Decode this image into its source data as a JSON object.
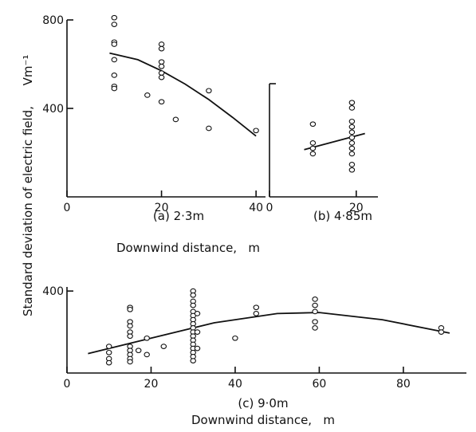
{
  "figure": {
    "ylabel_main": "Standard deviation of electric field,",
    "ylabel_unit": "Vm⁻¹"
  },
  "chart_data": [
    {
      "type": "scatter",
      "caption": "(a) 2·3m",
      "xlabel": "Downwind distance,   m",
      "ylabel": "",
      "xlim": [
        0,
        42
      ],
      "ylim": [
        0,
        800
      ],
      "xticks": [
        "0",
        "20",
        "40"
      ],
      "yticks": [
        "400",
        "800"
      ],
      "series": [
        {
          "points": [
            [
              10,
              810
            ],
            [
              10,
              780
            ],
            [
              10,
              700
            ],
            [
              10,
              690
            ],
            [
              10,
              620
            ],
            [
              10,
              550
            ],
            [
              10,
              500
            ],
            [
              10,
              490
            ],
            [
              17,
              460
            ],
            [
              20,
              690
            ],
            [
              20,
              670
            ],
            [
              20,
              610
            ],
            [
              20,
              590
            ],
            [
              20,
              560
            ],
            [
              20,
              540
            ],
            [
              20,
              430
            ],
            [
              23,
              350
            ],
            [
              30,
              480
            ],
            [
              30,
              310
            ],
            [
              40,
              300
            ]
          ]
        }
      ],
      "fit_line": [
        [
          9,
          650
        ],
        [
          15,
          620
        ],
        [
          20,
          570
        ],
        [
          25,
          510
        ],
        [
          30,
          440
        ],
        [
          35,
          360
        ],
        [
          40,
          275
        ]
      ]
    },
    {
      "type": "scatter",
      "caption": "(b) 4·85m",
      "xlabel": "",
      "ylabel": "",
      "xlim": [
        0,
        25
      ],
      "ylim": [
        0,
        420
      ],
      "xticks": [
        "0",
        "20"
      ],
      "yticks": [],
      "series": [
        {
          "points": [
            [
              10,
              270
            ],
            [
              10,
              200
            ],
            [
              10,
              180
            ],
            [
              10,
              160
            ],
            [
              19,
              350
            ],
            [
              19,
              330
            ],
            [
              19,
              280
            ],
            [
              19,
              260
            ],
            [
              19,
              240
            ],
            [
              19,
              220
            ],
            [
              19,
              200
            ],
            [
              19,
              180
            ],
            [
              19,
              160
            ],
            [
              19,
              120
            ],
            [
              19,
              100
            ]
          ]
        }
      ],
      "fit_line": [
        [
          8,
          175
        ],
        [
          22,
          235
        ]
      ]
    },
    {
      "type": "scatter",
      "caption": "(c) 9·0m",
      "xlabel": "Downwind distance,   m",
      "ylabel": "",
      "xlim": [
        0,
        95
      ],
      "ylim": [
        0,
        420
      ],
      "xticks": [
        "0",
        "20",
        "40",
        "60",
        "80"
      ],
      "yticks": [
        "400"
      ],
      "series": [
        {
          "points": [
            [
              10,
              130
            ],
            [
              10,
              100
            ],
            [
              10,
              70
            ],
            [
              10,
              50
            ],
            [
              15,
              320
            ],
            [
              15,
              310
            ],
            [
              15,
              250
            ],
            [
              15,
              230
            ],
            [
              15,
              200
            ],
            [
              15,
              180
            ],
            [
              15,
              130
            ],
            [
              15,
              110
            ],
            [
              15,
              90
            ],
            [
              15,
              70
            ],
            [
              15,
              55
            ],
            [
              17,
              110
            ],
            [
              19,
              170
            ],
            [
              19,
              90
            ],
            [
              23,
              130
            ],
            [
              30,
              400
            ],
            [
              30,
              380
            ],
            [
              30,
              350
            ],
            [
              30,
              330
            ],
            [
              30,
              300
            ],
            [
              30,
              280
            ],
            [
              30,
              260
            ],
            [
              30,
              240
            ],
            [
              30,
              220
            ],
            [
              30,
              200
            ],
            [
              30,
              180
            ],
            [
              30,
              160
            ],
            [
              30,
              140
            ],
            [
              30,
              120
            ],
            [
              30,
              100
            ],
            [
              30,
              80
            ],
            [
              30,
              60
            ],
            [
              31,
              290
            ],
            [
              31,
              200
            ],
            [
              31,
              120
            ],
            [
              40,
              170
            ],
            [
              45,
              320
            ],
            [
              45,
              290
            ],
            [
              59,
              360
            ],
            [
              59,
              330
            ],
            [
              59,
              300
            ],
            [
              59,
              250
            ],
            [
              59,
              220
            ],
            [
              89,
              220
            ],
            [
              89,
              200
            ]
          ]
        }
      ],
      "fit_line": [
        [
          5,
          95
        ],
        [
          20,
          170
        ],
        [
          35,
          245
        ],
        [
          50,
          290
        ],
        [
          60,
          295
        ],
        [
          75,
          260
        ],
        [
          91,
          195
        ]
      ]
    }
  ]
}
